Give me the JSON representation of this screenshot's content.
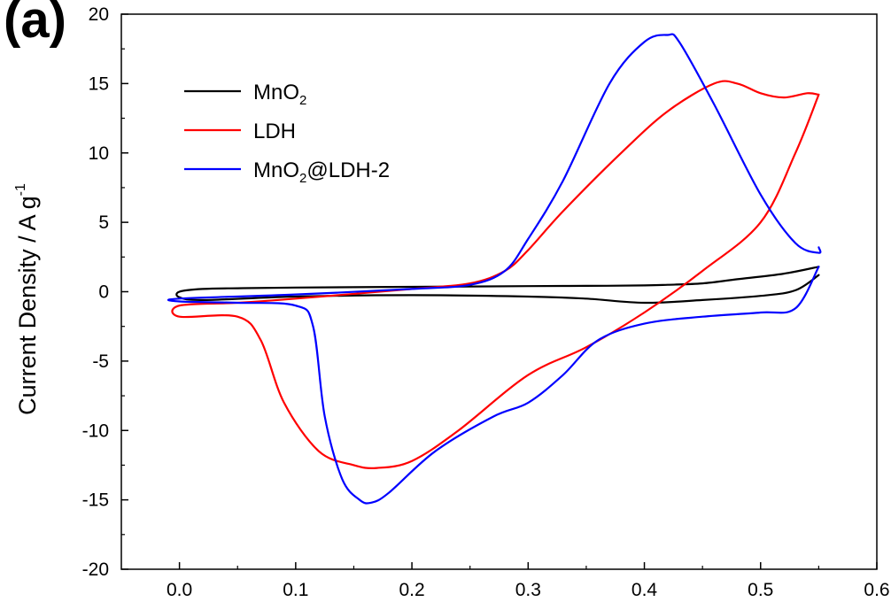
{
  "panel_label": "(a)",
  "chart_data": {
    "type": "line",
    "title": "",
    "xlabel": "",
    "ylabel": "Current Density / A g",
    "ylabel_superscript": "-1",
    "xlim": [
      -0.05,
      0.6
    ],
    "ylim": [
      -20,
      20
    ],
    "xticks": [
      0.0,
      0.1,
      0.2,
      0.3,
      0.4,
      0.5,
      0.6
    ],
    "xtick_labels": [
      "0.0",
      "0.1",
      "0.2",
      "0.3",
      "0.4",
      "0.5",
      "0.6"
    ],
    "yticks": [
      -20,
      -15,
      -10,
      -5,
      0,
      5,
      10,
      15,
      20
    ],
    "ytick_labels": [
      "-20",
      "-15",
      "-10",
      "-5",
      "0",
      "5",
      "10",
      "15",
      "20"
    ],
    "grid": false,
    "legend_position": "top-left",
    "series": [
      {
        "name": "MnO2",
        "legend_main": "MnO",
        "legend_sub": "2",
        "legend_tail": "",
        "color": "#000000",
        "x": [
          0.55,
          0.52,
          0.48,
          0.45,
          0.42,
          0.4,
          0.35,
          0.3,
          0.2,
          0.1,
          0.05,
          0.02,
          0.0,
          0.0,
          0.02,
          0.1,
          0.2,
          0.3,
          0.35,
          0.4,
          0.45,
          0.5,
          0.53,
          0.55
        ],
        "y": [
          1.8,
          1.3,
          0.9,
          0.6,
          0.5,
          0.45,
          0.42,
          0.4,
          0.35,
          0.3,
          0.25,
          0.2,
          0.0,
          -0.4,
          -0.6,
          -0.35,
          -0.25,
          -0.35,
          -0.5,
          -0.8,
          -0.6,
          -0.3,
          0.1,
          1.2
        ]
      },
      {
        "name": "LDH",
        "legend_main": "LDH",
        "legend_sub": "",
        "legend_tail": "",
        "color": "#ff0000",
        "x": [
          0.55,
          0.54,
          0.52,
          0.5,
          0.48,
          0.46,
          0.42,
          0.38,
          0.33,
          0.3,
          0.28,
          0.25,
          0.2,
          0.1,
          0.05,
          0.0,
          0.0,
          0.05,
          0.07,
          0.09,
          0.12,
          0.15,
          0.17,
          0.2,
          0.24,
          0.3,
          0.35,
          0.4,
          0.45,
          0.5,
          0.53,
          0.55
        ],
        "y": [
          14.2,
          14.3,
          14.0,
          14.3,
          15.0,
          15.0,
          13.0,
          10.0,
          5.8,
          3.0,
          1.5,
          0.6,
          0.2,
          -0.5,
          -0.8,
          -1.0,
          -1.8,
          -1.8,
          -3.5,
          -8.0,
          -11.5,
          -12.5,
          -12.7,
          -12.2,
          -10.0,
          -6.0,
          -4.0,
          -1.5,
          1.5,
          5.0,
          10.0,
          14.2
        ]
      },
      {
        "name": "MnO2@LDH-2",
        "legend_main": "MnO",
        "legend_sub": "2",
        "legend_tail": "@LDH-2",
        "color": "#0000ff",
        "x": [
          0.55,
          0.55,
          0.53,
          0.5,
          0.46,
          0.43,
          0.42,
          0.4,
          0.37,
          0.33,
          0.3,
          0.28,
          0.25,
          0.2,
          0.1,
          0.0,
          0.0,
          0.05,
          0.1,
          0.115,
          0.125,
          0.14,
          0.155,
          0.165,
          0.18,
          0.22,
          0.27,
          0.3,
          0.33,
          0.36,
          0.4,
          0.45,
          0.5,
          0.53,
          0.55
        ],
        "y": [
          3.2,
          2.8,
          3.5,
          7.0,
          13.5,
          18.0,
          18.5,
          18.0,
          15.0,
          8.0,
          3.8,
          1.5,
          0.5,
          0.2,
          -0.2,
          -0.5,
          -0.7,
          -0.8,
          -1.0,
          -2.5,
          -9.0,
          -13.5,
          -15.0,
          -15.2,
          -14.5,
          -11.5,
          -9.0,
          -8.0,
          -6.0,
          -3.5,
          -2.3,
          -1.8,
          -1.5,
          -1.2,
          1.8
        ]
      }
    ]
  }
}
